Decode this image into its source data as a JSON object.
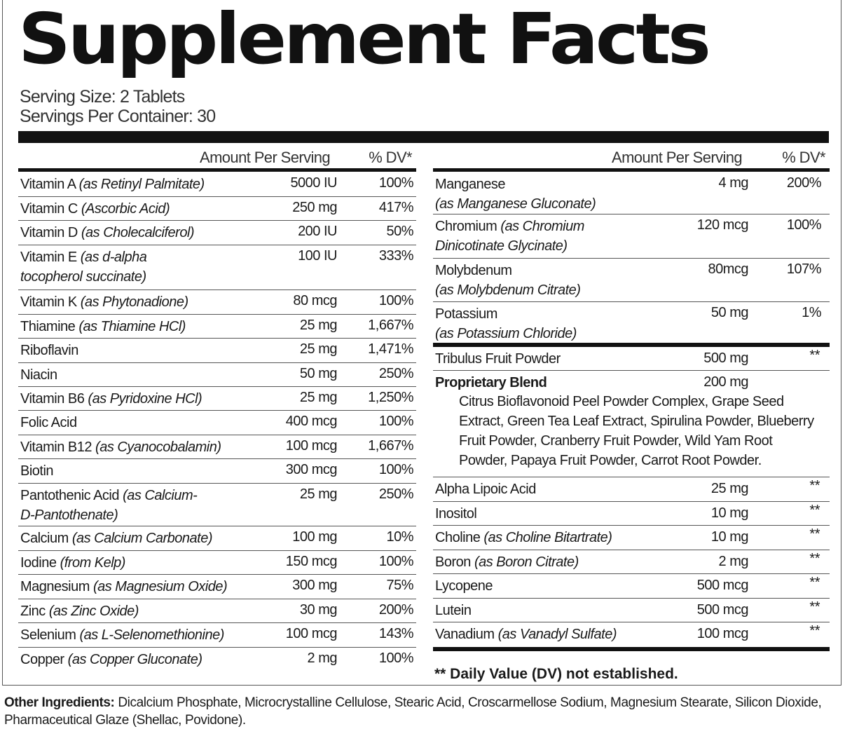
{
  "title": "Supplement Facts",
  "serving_size": "Serving Size: 2 Tablets",
  "servings_per_container": "Servings Per Container: 30",
  "headers": {
    "amount": "Amount Per Serving",
    "dv": "% DV*"
  },
  "left_rows": [
    {
      "name": "Vitamin A",
      "detail": "(as Retinyl Palmitate)",
      "detail2": "",
      "amount": "5000 IU",
      "dv": "100%"
    },
    {
      "name": "Vitamin C",
      "detail": "(Ascorbic Acid)",
      "detail2": "",
      "amount": "250 mg",
      "dv": "417%"
    },
    {
      "name": "Vitamin D",
      "detail": "(as Cholecalciferol)",
      "detail2": "",
      "amount": "200 IU",
      "dv": "50%"
    },
    {
      "name": "Vitamin E",
      "detail": "(as d-alpha",
      "detail2": "tocopherol succinate)",
      "amount": "100 IU",
      "dv": "333%"
    },
    {
      "name": "Vitamin K",
      "detail": "(as Phytonadione)",
      "detail2": "",
      "amount": "80 mcg",
      "dv": "100%"
    },
    {
      "name": "Thiamine",
      "detail": "(as Thiamine HCl)",
      "detail2": "",
      "amount": "25 mg",
      "dv": "1,667%"
    },
    {
      "name": "Riboflavin",
      "detail": "",
      "detail2": "",
      "amount": "25 mg",
      "dv": "1,471%"
    },
    {
      "name": "Niacin",
      "detail": "",
      "detail2": "",
      "amount": "50 mg",
      "dv": "250%"
    },
    {
      "name": "Vitamin B6",
      "detail": "(as Pyridoxine HCl)",
      "detail2": "",
      "amount": "25 mg",
      "dv": "1,250%"
    },
    {
      "name": "Folic Acid",
      "detail": "",
      "detail2": "",
      "amount": "400 mcg",
      "dv": "100%"
    },
    {
      "name": "Vitamin B12",
      "detail": "(as Cyanocobalamin)",
      "detail2": "",
      "amount": "100 mcg",
      "dv": "1,667%"
    },
    {
      "name": "Biotin",
      "detail": "",
      "detail2": "",
      "amount": "300 mcg",
      "dv": "100%"
    },
    {
      "name": "Pantothenic Acid",
      "detail": "(as Calcium-",
      "detail2": "D-Pantothenate)",
      "amount": "25 mg",
      "dv": "250%"
    },
    {
      "name": "Calcium",
      "detail": "(as Calcium Carbonate)",
      "detail2": "",
      "amount": "100 mg",
      "dv": "10%"
    },
    {
      "name": "Iodine",
      "detail": "(from Kelp)",
      "detail2": "",
      "amount": "150 mcg",
      "dv": "100%"
    },
    {
      "name": "Magnesium",
      "detail": "(as Magnesium Oxide)",
      "detail2": "",
      "amount": "300 mg",
      "dv": "75%"
    },
    {
      "name": "Zinc",
      "detail": "(as Zinc Oxide)",
      "detail2": "",
      "amount": "30 mg",
      "dv": "200%"
    },
    {
      "name": "Selenium",
      "detail": "(as L-Selenomethionine)",
      "detail2": "",
      "amount": "100 mcg",
      "dv": "143%"
    },
    {
      "name": "Copper",
      "detail": "(as Copper Gluconate)",
      "detail2": "",
      "amount": "2 mg",
      "dv": "100%"
    }
  ],
  "right_rows_top": [
    {
      "name": "Manganese",
      "detail": "",
      "detail2": "(as Manganese Gluconate)",
      "amount": "4 mg",
      "dv": "200%"
    },
    {
      "name": "Chromium",
      "detail": "(as Chromium",
      "detail2": "Dinicotinate Glycinate)",
      "amount": "120 mcg",
      "dv": "100%"
    },
    {
      "name": "Molybdenum",
      "detail": "",
      "detail2": "(as Molybdenum Citrate)",
      "amount": "80mcg",
      "dv": "107%"
    },
    {
      "name": "Potassium",
      "detail": "",
      "detail2": "(as Potassium Chloride)",
      "amount": "50 mg",
      "dv": "1%"
    }
  ],
  "tribulus": {
    "name": "Tribulus Fruit Powder",
    "amount": "500 mg",
    "dv": "**"
  },
  "blend": {
    "name": "Proprietary Blend",
    "amount": "200 mg",
    "lines": [
      "Citrus Bioflavonoid Peel Powder Complex, Grape Seed",
      "Extract, Green Tea Leaf Extract, Spirulina Powder, Blueberry",
      "Fruit Powder, Cranberry Fruit Powder, Wild Yam Root",
      "Powder, Papaya Fruit Powder, Carrot Root Powder."
    ]
  },
  "right_rows_bottom": [
    {
      "name": "Alpha Lipoic Acid",
      "detail": "",
      "amount": "25 mg",
      "dv": "**"
    },
    {
      "name": "Inositol",
      "detail": "",
      "amount": "10 mg",
      "dv": "**"
    },
    {
      "name": "Choline",
      "detail": "(as Choline Bitartrate)",
      "amount": "10 mg",
      "dv": "**"
    },
    {
      "name": "Boron",
      "detail": "(as Boron Citrate)",
      "amount": "2 mg",
      "dv": "**"
    },
    {
      "name": "Lycopene",
      "detail": "",
      "amount": "500 mcg",
      "dv": "**"
    },
    {
      "name": "Lutein",
      "detail": "",
      "amount": "500 mcg",
      "dv": "**"
    },
    {
      "name": "Vanadium",
      "detail": "(as Vanadyl Sulfate)",
      "amount": "100 mcg",
      "dv": "**"
    }
  ],
  "footnote": "** Daily Value (DV) not established.",
  "other_label": "Other Ingredients:",
  "other_text": " Dicalcium Phosphate, Microcrystalline Cellulose, Stearic Acid, Croscarmellose Sodium, Magnesium Stearate, Silicon Dioxide, Pharmaceutical Glaze (Shellac, Povidone)."
}
